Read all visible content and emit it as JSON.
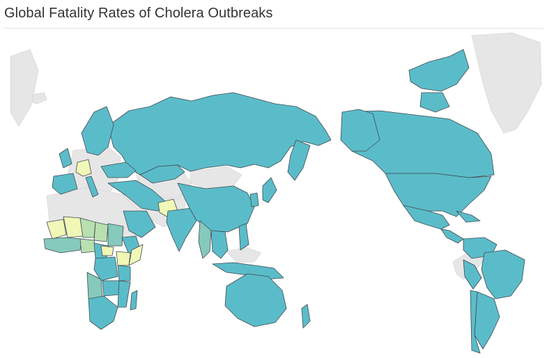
{
  "title": "Global Fatality Rates of Cholera Outbreaks",
  "colors": {
    "teal": "#5bbcc9",
    "teal_mid": "#86c9bd",
    "green_light": "#b9e0b0",
    "yellow": "#f1f7b6",
    "no_data": "#e6e6e6",
    "border": "#3e4a52",
    "ocean": "#ffffff"
  }
}
